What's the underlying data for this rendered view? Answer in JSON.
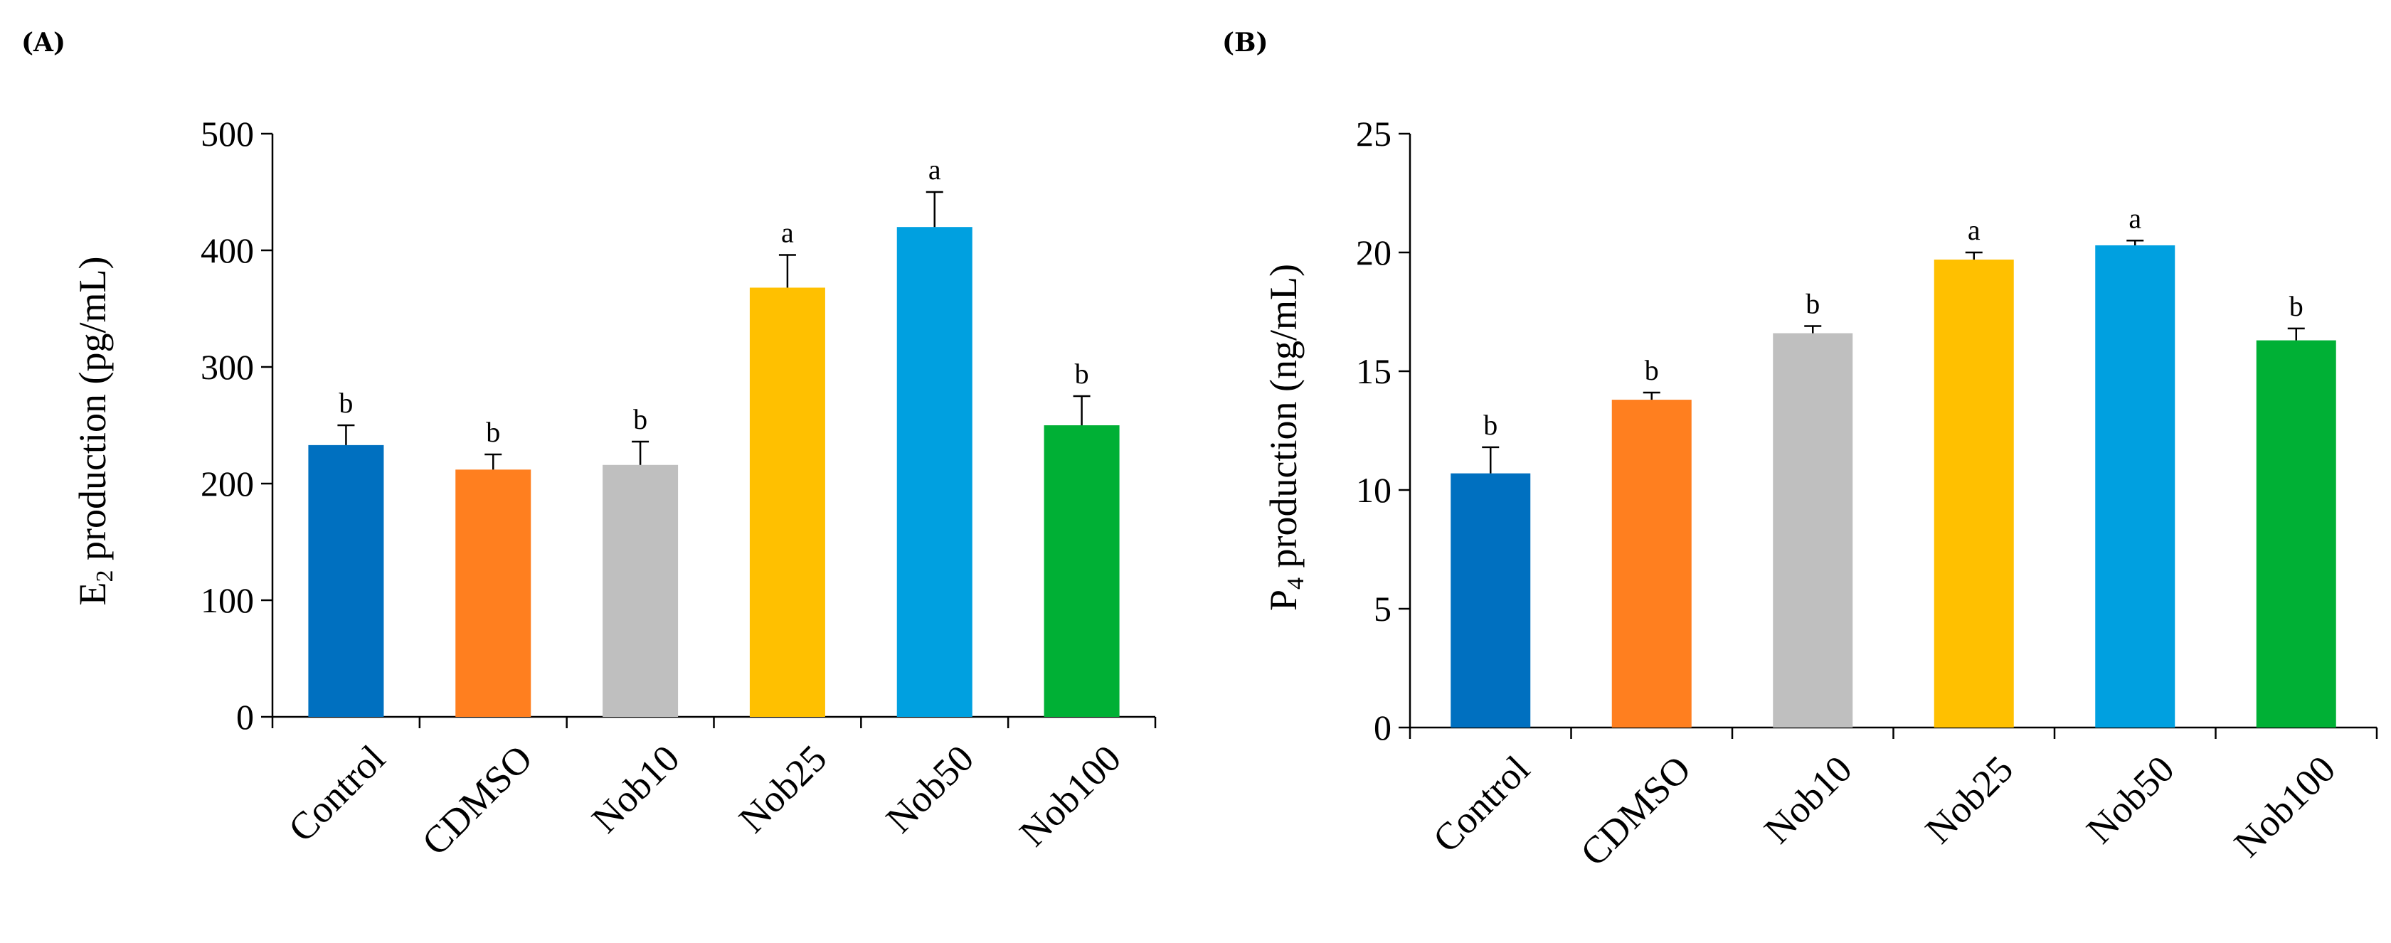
{
  "chart_data": [
    {
      "type": "bar",
      "panel_label": "(A)",
      "ylabel_main": "E",
      "ylabel_sub": "2",
      "ylabel_rest": " production (pg/mL)",
      "ylim": [
        0,
        500
      ],
      "yticks": [
        "0",
        "100",
        "200",
        "300",
        "400",
        "500"
      ],
      "ytick_values": [
        0,
        100,
        200,
        300,
        400,
        500
      ],
      "categories": [
        "Control",
        "CDMSO",
        "Nob10",
        "Nob25",
        "Nob50",
        "Nob100"
      ],
      "values": [
        233,
        212,
        216,
        368,
        420,
        250
      ],
      "errors": [
        17,
        13,
        20,
        28,
        30,
        25
      ],
      "significance": [
        "b",
        "b",
        "b",
        "a",
        "a",
        "b"
      ],
      "colors": [
        "#0070C0",
        "#FF7F1F",
        "#BFBFBF",
        "#FFC000",
        "#00A0E0",
        "#00B035"
      ]
    },
    {
      "type": "bar",
      "panel_label": "(B)",
      "ylabel_main": "P",
      "ylabel_sub": "4",
      "ylabel_rest": " production (ng/mL)",
      "ylim": [
        0,
        25
      ],
      "yticks": [
        "0",
        "5",
        "10",
        "15",
        "20",
        "25"
      ],
      "ytick_values": [
        0,
        5,
        10,
        15,
        20,
        25
      ],
      "categories": [
        "Control",
        "CDMSO",
        "Nob10",
        "Nob25",
        "Nob50",
        "Nob100"
      ],
      "values": [
        10.7,
        13.8,
        16.6,
        19.7,
        20.3,
        16.3
      ],
      "errors": [
        1.1,
        0.3,
        0.3,
        0.3,
        0.2,
        0.5
      ],
      "significance": [
        "b",
        "b",
        "b",
        "a",
        "a",
        "b"
      ],
      "colors": [
        "#0070C0",
        "#FF7F1F",
        "#BFBFBF",
        "#FFC000",
        "#00A0E0",
        "#00B035"
      ]
    }
  ]
}
